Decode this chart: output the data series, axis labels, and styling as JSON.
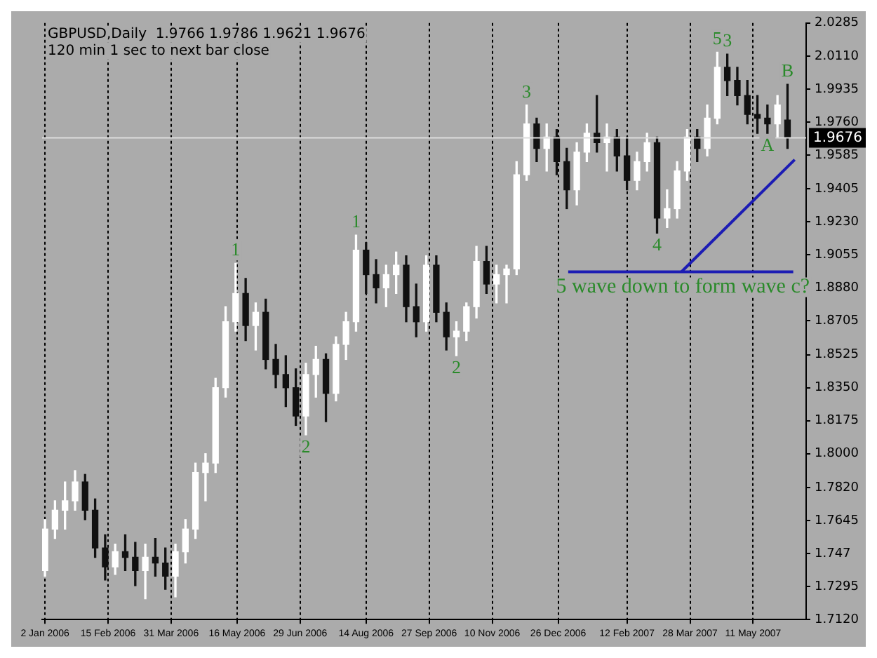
{
  "chart_data": {
    "type": "candlestick",
    "title": "GBPUSD,Daily  1.9766 1.9786 1.9621 1.9676",
    "subtitle": "120 min 1 sec to next bar close",
    "x": [
      "2006-01-02",
      "2006-01-09",
      "2006-01-16",
      "2006-01-23",
      "2006-01-30",
      "2006-02-06",
      "2006-02-13",
      "2006-02-20",
      "2006-02-27",
      "2006-03-06",
      "2006-03-13",
      "2006-03-20",
      "2006-03-27",
      "2006-04-03",
      "2006-04-10",
      "2006-04-17",
      "2006-04-24",
      "2006-05-01",
      "2006-05-08",
      "2006-05-15",
      "2006-05-22",
      "2006-05-29",
      "2006-06-05",
      "2006-06-12",
      "2006-06-19",
      "2006-06-26",
      "2006-07-03",
      "2006-07-10",
      "2006-07-17",
      "2006-07-24",
      "2006-07-31",
      "2006-08-07",
      "2006-08-14",
      "2006-08-21",
      "2006-08-28",
      "2006-09-04",
      "2006-09-11",
      "2006-09-18",
      "2006-09-25",
      "2006-10-02",
      "2006-10-09",
      "2006-10-16",
      "2006-10-23",
      "2006-10-30",
      "2006-11-06",
      "2006-11-13",
      "2006-11-20",
      "2006-11-27",
      "2006-12-04",
      "2006-12-11",
      "2006-12-18",
      "2006-12-25",
      "2007-01-01",
      "2007-01-08",
      "2007-01-15",
      "2007-01-22",
      "2007-01-29",
      "2007-02-05",
      "2007-02-12",
      "2007-02-19",
      "2007-02-26",
      "2007-03-05",
      "2007-03-12",
      "2007-03-19",
      "2007-03-26",
      "2007-04-02",
      "2007-04-09",
      "2007-04-16",
      "2007-04-23",
      "2007-04-30",
      "2007-05-07",
      "2007-05-14",
      "2007-05-21",
      "2007-05-28",
      "2007-06-04"
    ],
    "ohlc": [
      [
        1.738,
        1.765,
        1.735,
        1.76
      ],
      [
        1.76,
        1.775,
        1.755,
        1.77
      ],
      [
        1.77,
        1.785,
        1.76,
        1.775
      ],
      [
        1.775,
        1.791,
        1.77,
        1.785
      ],
      [
        1.785,
        1.789,
        1.765,
        1.77
      ],
      [
        1.77,
        1.776,
        1.745,
        1.75
      ],
      [
        1.75,
        1.757,
        1.733,
        1.74
      ],
      [
        1.74,
        1.752,
        1.736,
        1.748
      ],
      [
        1.748,
        1.757,
        1.738,
        1.745
      ],
      [
        1.745,
        1.753,
        1.73,
        1.738
      ],
      [
        1.738,
        1.752,
        1.723,
        1.745
      ],
      [
        1.745,
        1.755,
        1.735,
        1.742
      ],
      [
        1.742,
        1.75,
        1.728,
        1.735
      ],
      [
        1.735,
        1.752,
        1.724,
        1.748
      ],
      [
        1.748,
        1.765,
        1.742,
        1.76
      ],
      [
        1.76,
        1.795,
        1.755,
        1.79
      ],
      [
        1.79,
        1.8,
        1.775,
        1.795
      ],
      [
        1.795,
        1.84,
        1.79,
        1.835
      ],
      [
        1.835,
        1.878,
        1.83,
        1.87
      ],
      [
        1.87,
        1.901,
        1.865,
        1.885
      ],
      [
        1.885,
        1.893,
        1.86,
        1.868
      ],
      [
        1.868,
        1.88,
        1.855,
        1.875
      ],
      [
        1.875,
        1.882,
        1.845,
        1.85
      ],
      [
        1.85,
        1.858,
        1.835,
        1.842
      ],
      [
        1.842,
        1.852,
        1.825,
        1.835
      ],
      [
        1.835,
        1.845,
        1.815,
        1.82
      ],
      [
        1.82,
        1.848,
        1.81,
        1.842
      ],
      [
        1.842,
        1.857,
        1.83,
        1.85
      ],
      [
        1.85,
        1.853,
        1.817,
        1.832
      ],
      [
        1.832,
        1.862,
        1.828,
        1.858
      ],
      [
        1.858,
        1.875,
        1.85,
        1.87
      ],
      [
        1.87,
        1.916,
        1.865,
        1.908
      ],
      [
        1.908,
        1.912,
        1.885,
        1.895
      ],
      [
        1.895,
        1.903,
        1.88,
        1.888
      ],
      [
        1.888,
        1.9,
        1.878,
        1.895
      ],
      [
        1.895,
        1.907,
        1.885,
        1.9
      ],
      [
        1.9,
        1.905,
        1.87,
        1.878
      ],
      [
        1.878,
        1.89,
        1.862,
        1.87
      ],
      [
        1.87,
        1.905,
        1.865,
        1.9
      ],
      [
        1.9,
        1.905,
        1.87,
        1.875
      ],
      [
        1.875,
        1.88,
        1.855,
        1.862
      ],
      [
        1.862,
        1.87,
        1.852,
        1.865
      ],
      [
        1.865,
        1.88,
        1.86,
        1.878
      ],
      [
        1.878,
        1.91,
        1.872,
        1.902
      ],
      [
        1.902,
        1.91,
        1.885,
        1.89
      ],
      [
        1.89,
        1.9,
        1.88,
        1.895
      ],
      [
        1.895,
        1.9,
        1.88,
        1.898
      ],
      [
        1.898,
        1.955,
        1.895,
        1.948
      ],
      [
        1.948,
        1.985,
        1.945,
        1.975
      ],
      [
        1.975,
        1.978,
        1.955,
        1.962
      ],
      [
        1.962,
        1.975,
        1.95,
        1.968
      ],
      [
        1.968,
        1.972,
        1.948,
        1.955
      ],
      [
        1.955,
        1.962,
        1.93,
        1.94
      ],
      [
        1.94,
        1.965,
        1.932,
        1.96
      ],
      [
        1.96,
        1.975,
        1.955,
        1.97
      ],
      [
        1.97,
        1.99,
        1.96,
        1.965
      ],
      [
        1.965,
        1.975,
        1.95,
        1.968
      ],
      [
        1.968,
        1.972,
        1.95,
        1.958
      ],
      [
        1.958,
        1.968,
        1.94,
        1.945
      ],
      [
        1.945,
        1.96,
        1.94,
        1.955
      ],
      [
        1.955,
        1.97,
        1.95,
        1.965
      ],
      [
        1.965,
        1.968,
        1.917,
        1.925
      ],
      [
        1.925,
        1.94,
        1.92,
        1.93
      ],
      [
        1.93,
        1.955,
        1.925,
        1.95
      ],
      [
        1.95,
        1.972,
        1.945,
        1.968
      ],
      [
        1.968,
        1.972,
        1.955,
        1.962
      ],
      [
        1.962,
        1.985,
        1.958,
        1.978
      ],
      [
        1.978,
        2.013,
        1.975,
        2.005
      ],
      [
        2.005,
        2.012,
        1.99,
        1.998
      ],
      [
        1.998,
        2.005,
        1.985,
        1.99
      ],
      [
        1.99,
        1.998,
        1.975,
        1.98
      ],
      [
        1.98,
        1.99,
        1.97,
        1.978
      ],
      [
        1.978,
        1.985,
        1.97,
        1.975
      ],
      [
        1.975,
        1.99,
        1.968,
        1.985
      ],
      [
        1.977,
        1.996,
        1.962,
        1.9676
      ]
    ],
    "series": [
      {
        "type": "line",
        "color": "#1c1cb4",
        "x": [
          "2007-01-02",
          "2007-06-08"
        ],
        "values": [
          1.8965,
          1.8965
        ]
      },
      {
        "type": "line",
        "color": "#1c1cb4",
        "x": [
          "2007-03-22",
          "2007-06-09"
        ],
        "values": [
          1.8965,
          1.956
        ]
      }
    ],
    "xlim": [
      "2005-12-31",
      "2007-06-17"
    ],
    "xticks": [
      {
        "value": "2006-01-02",
        "label": "2 Jan 2006"
      },
      {
        "value": "2006-02-15",
        "label": "15 Feb 2006"
      },
      {
        "value": "2006-03-31",
        "label": "31 Mar 2006"
      },
      {
        "value": "2006-05-16",
        "label": "16 May 2006"
      },
      {
        "value": "2006-06-29",
        "label": "29 Jun 2006"
      },
      {
        "value": "2006-08-14",
        "label": "14 Aug 2006"
      },
      {
        "value": "2006-09-27",
        "label": "27 Sep 2006"
      },
      {
        "value": "2006-11-10",
        "label": "10 Nov 2006"
      },
      {
        "value": "2006-12-26",
        "label": "26 Dec 2006"
      },
      {
        "value": "2007-02-12",
        "label": "12 Feb 2007"
      },
      {
        "value": "2007-03-28",
        "label": "28 Mar 2007"
      },
      {
        "value": "2007-05-11",
        "label": "11 May 2007"
      }
    ],
    "ylim": [
      1.712,
      2.0285
    ],
    "yticks": [
      {
        "value": 1.712,
        "label": "1.7120"
      },
      1.7295,
      1.747,
      1.7645,
      {
        "value": 1.782,
        "label": "1.7820"
      },
      {
        "value": 1.8,
        "label": "1.8000"
      },
      1.8175,
      {
        "value": 1.835,
        "label": "1.8350"
      },
      1.8525,
      1.8705,
      {
        "value": 1.888,
        "label": "1.8880"
      },
      1.9055,
      {
        "value": 1.923,
        "label": "1.9230"
      },
      1.9405,
      1.9585,
      {
        "value": 1.976,
        "label": "1.9760"
      },
      1.9935,
      {
        "value": 2.011,
        "label": "2.0110"
      },
      2.0285
    ],
    "grid": "x",
    "ref_lines": [
      {
        "axis": "y",
        "value": 1.9676,
        "label": "1.9676",
        "color": "#dcdcdc"
      }
    ],
    "annotations": [
      {
        "text": "1",
        "x": "2006-05-15",
        "y": 1.901
      },
      {
        "text": "2",
        "x": "2006-07-03",
        "y": 1.81
      },
      {
        "text": "1",
        "x": "2006-08-07",
        "y": 1.916
      },
      {
        "text": "2",
        "x": "2006-10-16",
        "y": 1.852
      },
      {
        "text": "3",
        "x": "2006-12-04",
        "y": 1.985
      },
      {
        "text": "4",
        "x": "2007-03-05",
        "y": 1.917
      },
      {
        "text": "5",
        "x": "2007-04-16",
        "y": 2.013
      },
      {
        "text": "3",
        "x": "2007-04-23",
        "y": 2.012
      },
      {
        "text": "A",
        "x": "2007-05-21",
        "y": 1.97
      },
      {
        "text": "B",
        "x": "2007-06-04",
        "y": 1.996
      },
      {
        "text": "5 wave down to form wave c?",
        "x": "2007-03-23",
        "y": 1.8965
      }
    ]
  }
}
